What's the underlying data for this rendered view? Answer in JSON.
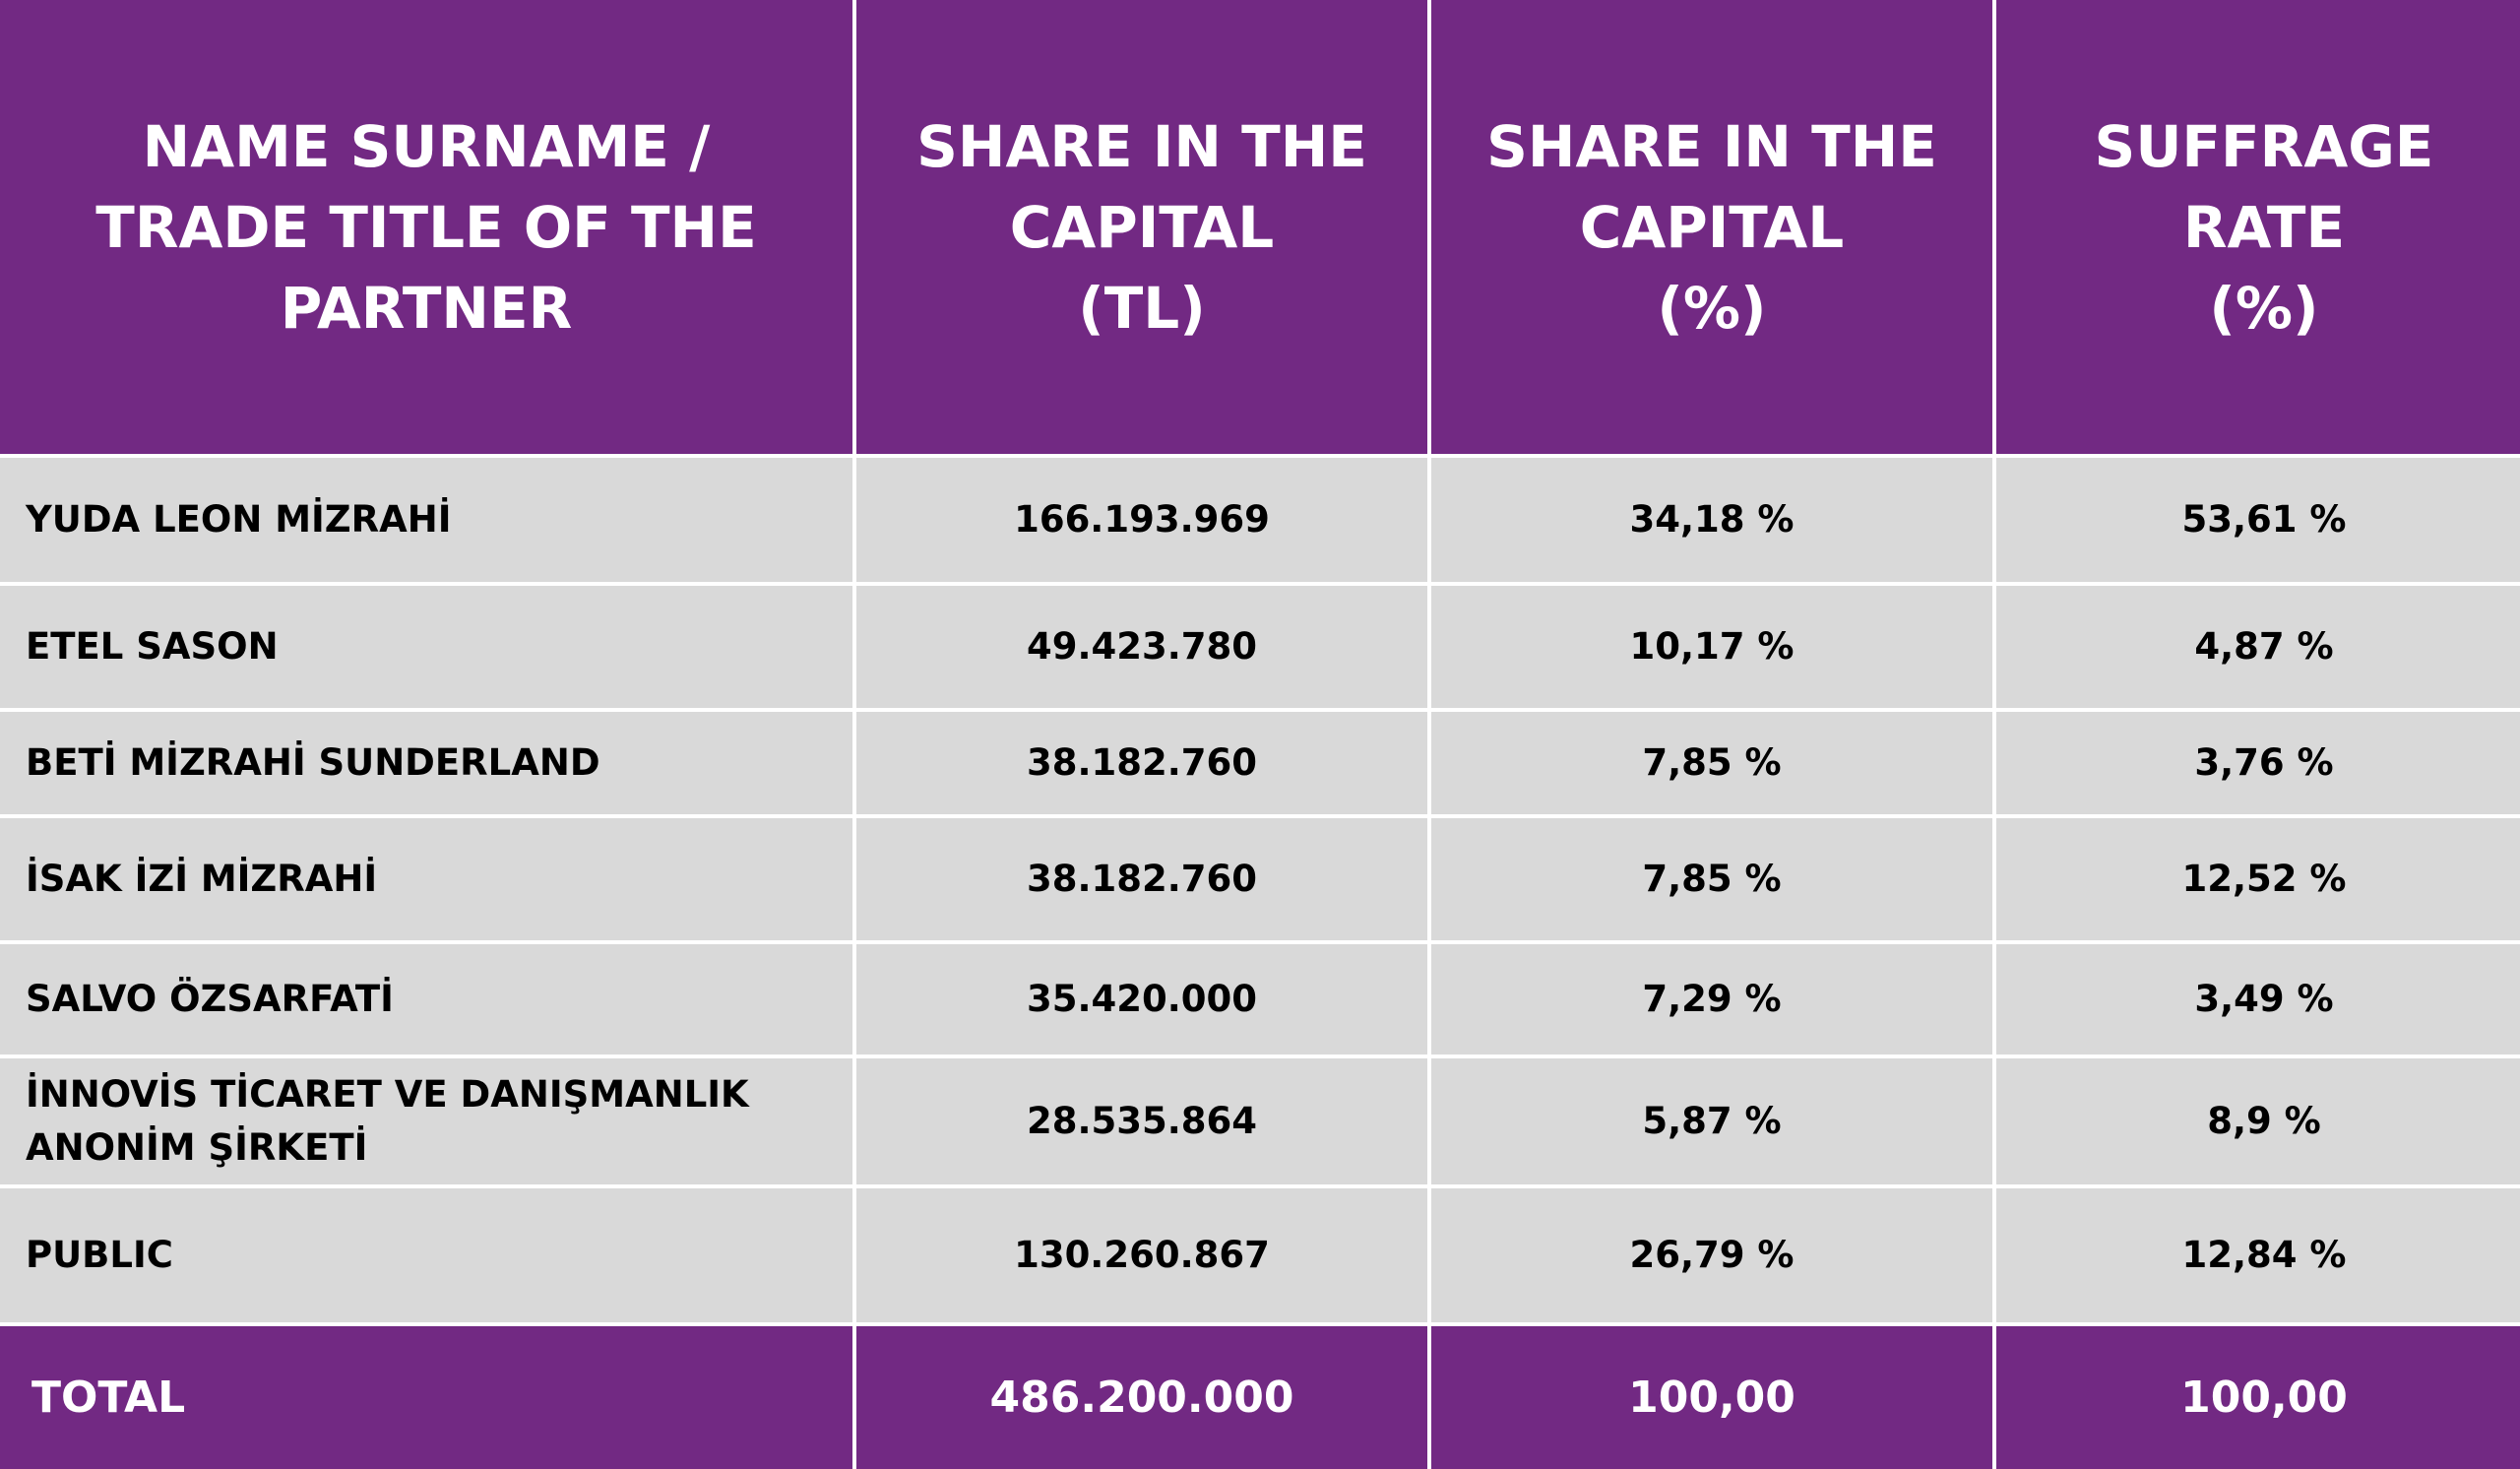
{
  "table": {
    "headers": [
      "NAME SURNAME /\nTRADE TITLE OF THE\nPARTNER",
      "SHARE IN THE\nCAPITAL\n(TL)",
      "SHARE IN THE\nCAPITAL\n(%)",
      "SUFFRAGE\nRATE\n(%)"
    ],
    "rows": [
      {
        "name": "YUDA LEON MİZRAHİ",
        "capital_tl": "166.193.969",
        "capital_pct": "34,18 %",
        "suffrage_pct": "53,61 %"
      },
      {
        "name": "ETEL SASON",
        "capital_tl": "49.423.780",
        "capital_pct": "10,17 %",
        "suffrage_pct": "4,87 %"
      },
      {
        "name": "BETİ MİZRAHİ SUNDERLAND",
        "capital_tl": "38.182.760",
        "capital_pct": "7,85 %",
        "suffrage_pct": "3,76 %"
      },
      {
        "name": "İSAK İZİ MİZRAHİ",
        "capital_tl": "38.182.760",
        "capital_pct": "7,85 %",
        "suffrage_pct": "12,52 %"
      },
      {
        "name": "SALVO ÖZSARFATİ",
        "capital_tl": "35.420.000",
        "capital_pct": "7,29 %",
        "suffrage_pct": "3,49 %"
      },
      {
        "name": "İNNOVİS TİCARET VE DANIŞMANLIK ANONİM ŞİRKETİ",
        "capital_tl": "28.535.864",
        "capital_pct": "5,87 %",
        "suffrage_pct": "8,9 %"
      },
      {
        "name": "PUBLIC",
        "capital_tl": "130.260.867",
        "capital_pct": "26,79 %",
        "suffrage_pct": "12,84 %"
      }
    ],
    "total": {
      "label": "TOTAL",
      "capital_tl": "486.200.000",
      "capital_pct": "100,00",
      "suffrage_pct": "100,00"
    }
  },
  "colors": {
    "header_bg": "#722983",
    "row_bg": "#d9d9d9",
    "divider": "#ffffff"
  }
}
